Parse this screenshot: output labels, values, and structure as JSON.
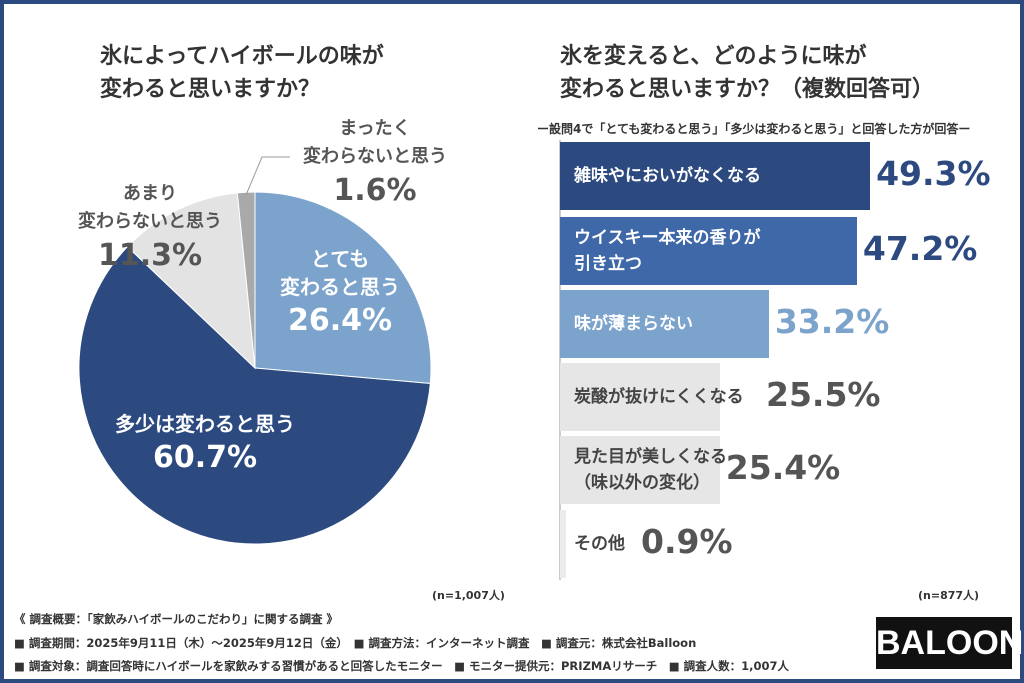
{
  "chart_data": [
    {
      "type": "pie",
      "title": "氷によってハイボールの味が\n変わると思いますか？",
      "slices": [
        {
          "label": "とても\n変わると思う",
          "value": 26.4,
          "pct": "26.4%",
          "color": "#7ba3cc",
          "text_color": "#ffffff"
        },
        {
          "label": "多少は変わると思う",
          "value": 60.7,
          "pct": "60.7%",
          "color": "#2c4a80",
          "text_color": "#ffffff"
        },
        {
          "label": "あまり\n変わらないと思う",
          "value": 11.3,
          "pct": "11.3%",
          "color": "#e3e3e3",
          "text_color": "#555555"
        },
        {
          "label": "まったく\n変わらないと思う",
          "value": 1.6,
          "pct": "1.6%",
          "color": "#a9a9a9",
          "text_color": "#555555"
        }
      ],
      "n": "(n=1,007人)"
    },
    {
      "type": "bar",
      "orientation": "horizontal",
      "title": "氷を変えると、どのように味が\n変わると思いますか？（複数回答可）",
      "subtitle": "ー設問4で「とても変わると思う」「多少は変わると思う」と回答した方が回答ー",
      "categories": [
        "雑味やにおいがなくなる",
        "ウイスキー本来の香りが\n引き立つ",
        "味が薄まらない",
        "炭酸が抜けにくくなる",
        "見た目が美しくなる\n（味以外の変化）",
        "その他"
      ],
      "values": [
        49.3,
        47.2,
        33.2,
        25.5,
        25.4,
        0.9
      ],
      "value_labels": [
        "49.3%",
        "47.2%",
        "33.2%",
        "25.5%",
        "25.4%",
        "0.9%"
      ],
      "colors": [
        "#2c4a80",
        "#3f68a8",
        "#7ba3cc",
        "#e6e6e6",
        "#e6e6e6",
        "#ececec"
      ],
      "text_colors": [
        "#ffffff",
        "#ffffff",
        "#ffffff",
        "#444444",
        "#444444",
        "#444444"
      ],
      "value_colors": [
        "#2c4a80",
        "#2c4a80",
        "#7ba3cc",
        "#555555",
        "#555555",
        "#555555"
      ],
      "n": "(n=877人)"
    }
  ],
  "footer": {
    "line1": "《 調査概要：「家飲みハイボールのこだわり」に関する調査 》",
    "line2": "■ 調査期間：2025年9月11日（木）～2025年9月12日（金）　■ 調査方法：インターネット調査　■ 調査元：株式会社Balloon",
    "line3": "■ 調査対象：調査回答時にハイボールを家飲みする習慣があると回答したモニター　■ モニター提供元：PRIZMAリサーチ　■ 調査人数：1,007人",
    "logo": "BALOON"
  }
}
